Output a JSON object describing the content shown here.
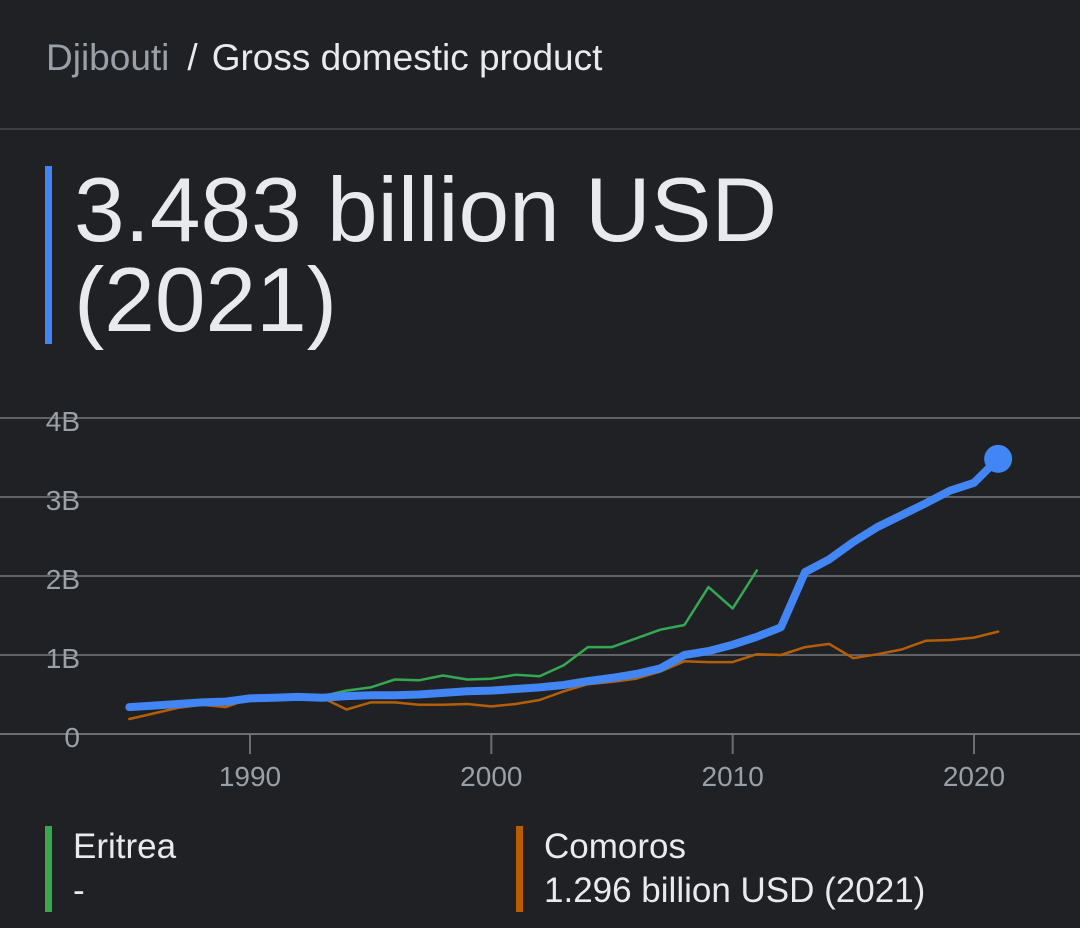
{
  "breadcrumb": {
    "parent": "Djibouti",
    "separator": "/",
    "current": "Gross domestic product"
  },
  "headline": {
    "value": "3.483 billion USD (2021)"
  },
  "legend": [
    {
      "name": "Eritrea",
      "value": "-",
      "color": "#34a853"
    },
    {
      "name": "Comoros",
      "value": "1.296 billion USD (2021)",
      "color": "#b45f06"
    }
  ],
  "chart_data": {
    "type": "line",
    "xlim": [
      1980,
      2024
    ],
    "ylim": [
      0,
      4
    ],
    "y_ticks": [
      {
        "v": 0,
        "label": "0"
      },
      {
        "v": 1,
        "label": "1B"
      },
      {
        "v": 2,
        "label": "2B"
      },
      {
        "v": 3,
        "label": "3B"
      },
      {
        "v": 4,
        "label": "4B"
      }
    ],
    "x_ticks": [
      {
        "v": 1990,
        "label": "1990"
      },
      {
        "v": 2000,
        "label": "2000"
      },
      {
        "v": 2010,
        "label": "2010"
      },
      {
        "v": 2020,
        "label": "2020"
      }
    ],
    "grid": true,
    "series": [
      {
        "name": "Djibouti",
        "color": "#4285f4",
        "emphasis": true,
        "x": [
          1985,
          1986,
          1987,
          1988,
          1989,
          1990,
          1991,
          1992,
          1993,
          1994,
          1995,
          1996,
          1997,
          1998,
          1999,
          2000,
          2001,
          2002,
          2003,
          2004,
          2005,
          2006,
          2007,
          2008,
          2009,
          2010,
          2011,
          2012,
          2013,
          2014,
          2015,
          2016,
          2017,
          2018,
          2019,
          2020,
          2021
        ],
        "y": [
          0.34,
          0.36,
          0.38,
          0.4,
          0.41,
          0.45,
          0.46,
          0.47,
          0.46,
          0.48,
          0.49,
          0.49,
          0.5,
          0.52,
          0.54,
          0.55,
          0.57,
          0.59,
          0.62,
          0.67,
          0.71,
          0.76,
          0.83,
          1.0,
          1.05,
          1.13,
          1.23,
          1.35,
          2.05,
          2.21,
          2.43,
          2.62,
          2.77,
          2.92,
          3.08,
          3.18,
          3.483
        ]
      },
      {
        "name": "Eritrea",
        "color": "#34a853",
        "x": [
          1992,
          1993,
          1994,
          1995,
          1996,
          1997,
          1998,
          1999,
          2000,
          2001,
          2002,
          2003,
          2004,
          2005,
          2006,
          2007,
          2008,
          2009,
          2010,
          2011
        ],
        "y": [
          0.48,
          0.48,
          0.55,
          0.59,
          0.69,
          0.68,
          0.74,
          0.69,
          0.7,
          0.75,
          0.73,
          0.87,
          1.1,
          1.1,
          1.21,
          1.32,
          1.38,
          1.86,
          1.59,
          2.07
        ]
      },
      {
        "name": "Comoros",
        "color": "#b45f06",
        "x": [
          1985,
          1986,
          1987,
          1988,
          1989,
          1990,
          1991,
          1992,
          1993,
          1994,
          1995,
          1996,
          1997,
          1998,
          1999,
          2000,
          2001,
          2002,
          2003,
          2004,
          2005,
          2006,
          2007,
          2008,
          2009,
          2010,
          2011,
          2012,
          2013,
          2014,
          2015,
          2016,
          2017,
          2018,
          2019,
          2020,
          2021
        ],
        "y": [
          0.19,
          0.26,
          0.33,
          0.37,
          0.34,
          0.45,
          0.45,
          0.47,
          0.46,
          0.31,
          0.4,
          0.4,
          0.37,
          0.37,
          0.38,
          0.35,
          0.38,
          0.43,
          0.54,
          0.63,
          0.66,
          0.7,
          0.79,
          0.92,
          0.91,
          0.91,
          1.01,
          1.0,
          1.1,
          1.14,
          0.96,
          1.01,
          1.07,
          1.18,
          1.19,
          1.22,
          1.296
        ]
      }
    ]
  }
}
